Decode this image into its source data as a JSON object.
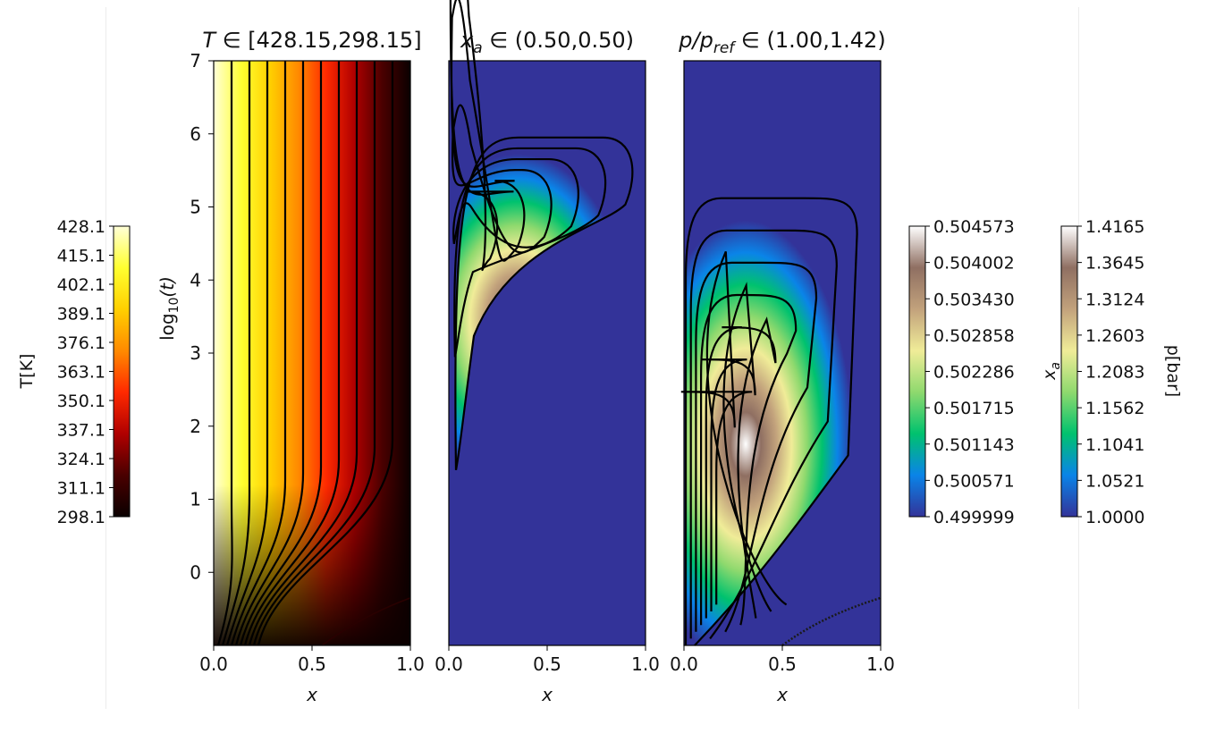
{
  "chart_data": [
    {
      "type": "heatmap",
      "title": "T∈[428.15,298.15]",
      "title_parts": {
        "var": "T",
        "rest": " ∈ [428.15,298.15]"
      },
      "xlabel": "x",
      "ylabel_parts": {
        "base": "log",
        "sub": "10",
        "rest": "(t)"
      },
      "xlim": [
        0.0,
        1.0
      ],
      "ylim": [
        -1.0,
        7.0
      ],
      "x_ticks": [
        "0.0",
        "0.5",
        "1.0"
      ],
      "y_ticks": [
        {
          "value": 0,
          "label": "0"
        },
        {
          "value": 1,
          "label": "1"
        },
        {
          "value": 2,
          "label": "2"
        },
        {
          "value": 3,
          "label": "3"
        },
        {
          "value": 4,
          "label": "4"
        },
        {
          "value": 5,
          "label": "5"
        },
        {
          "value": 6,
          "label": "6"
        },
        {
          "value": 7,
          "label": "7"
        }
      ],
      "colormap": "hot",
      "colormap_stops": [
        "#0b0000",
        "#4a0000",
        "#b00000",
        "#ff2a00",
        "#ff8a00",
        "#ffd000",
        "#ffff30",
        "#ffffd8"
      ],
      "contour_lines": 10,
      "contour_color": "#000000",
      "colorbar": {
        "label": "T[K]",
        "label_side": "left",
        "min": 298.1,
        "max": 428.1,
        "ticks": [
          "298.1",
          "311.1",
          "324.1",
          "337.1",
          "350.1",
          "363.1",
          "376.1",
          "389.1",
          "402.1",
          "415.1",
          "428.1"
        ]
      }
    },
    {
      "type": "heatmap",
      "title": "x_a∈(0.50,0.50)",
      "title_parts": {
        "var": "x",
        "sub": "a",
        "rest": " ∈ (0.50,0.50)"
      },
      "xlabel": "x",
      "xlim": [
        0.0,
        1.0
      ],
      "ylim": [
        -1.0,
        7.0
      ],
      "x_ticks": [
        "0.0",
        "0.5",
        "1.0"
      ],
      "colormap": "terrain_r",
      "colormap_stops": [
        "#333399",
        "#0a84e8",
        "#00c26e",
        "#8fd96e",
        "#f0ec98",
        "#c2a27c",
        "#8f6f62",
        "#ffffff"
      ],
      "contour_lines": 6,
      "contour_color": "#000000",
      "colorbar": {
        "label": "x_a",
        "label_parts": {
          "var": "x",
          "sub": "a"
        },
        "label_side": "right",
        "min": 0.499999,
        "max": 0.504573,
        "ticks": [
          "0.499999",
          "0.500571",
          "0.501143",
          "0.501715",
          "0.502286",
          "0.502858",
          "0.503430",
          "0.504002",
          "0.504573"
        ]
      }
    },
    {
      "type": "heatmap",
      "title": "p/p_ref∈(1.00,1.42)",
      "title_parts": {
        "var": "p/p",
        "sub": "ref",
        "rest": " ∈ (1.00,1.42)"
      },
      "xlabel": "x",
      "xlim": [
        0.0,
        1.0
      ],
      "ylim": [
        -1.0,
        7.0
      ],
      "x_ticks": [
        "0.0",
        "0.5",
        "1.0"
      ],
      "colormap": "terrain_r",
      "colormap_stops": [
        "#333399",
        "#0a84e8",
        "#00c26e",
        "#8fd96e",
        "#f0ec98",
        "#c2a27c",
        "#8f6f62",
        "#ffffff"
      ],
      "contour_lines": 7,
      "contour_color": "#000000",
      "colorbar": {
        "label": "p[bar]",
        "label_side": "right",
        "min": 1.0,
        "max": 1.4165,
        "ticks": [
          "1.0000",
          "1.0521",
          "1.1041",
          "1.1562",
          "1.2083",
          "1.2603",
          "1.3124",
          "1.3645",
          "1.4165"
        ]
      }
    }
  ]
}
